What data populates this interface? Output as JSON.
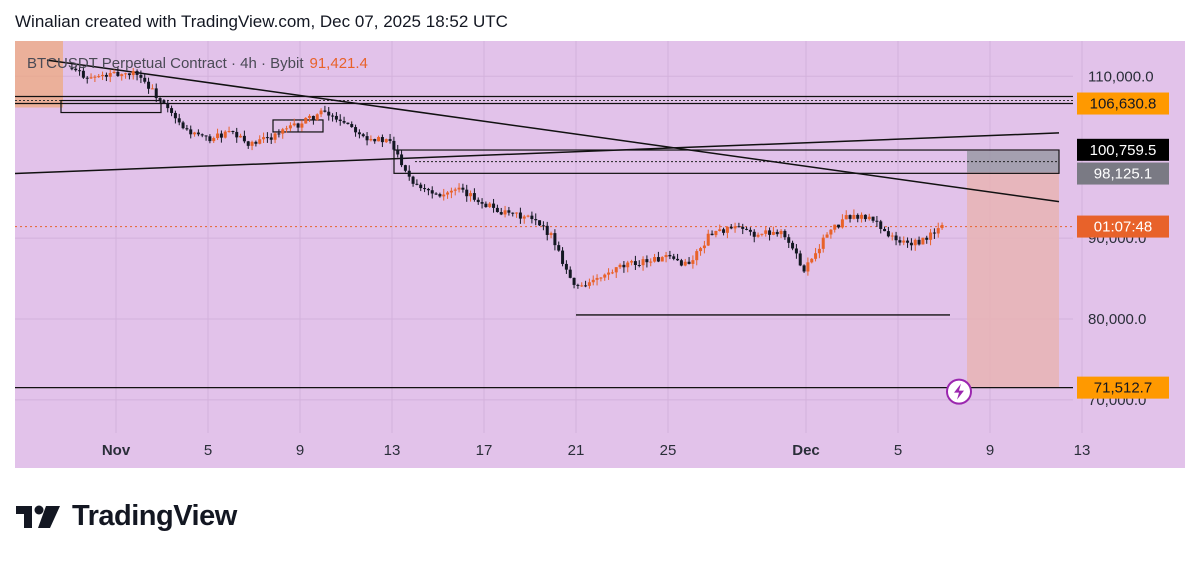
{
  "header": {
    "caption": "Winalian created with TradingView.com, Dec 07, 2025 18:52 UTC"
  },
  "symbol": {
    "name": "BTCUSDT Perpetual Contract · 4h · Bybit",
    "last_price": "91,421.4"
  },
  "colors": {
    "background": "#e2c2ea",
    "up_candle": "#e8622a",
    "down_candle": "#131722",
    "target_zone": "#e8b4b4",
    "stop_zone": "#9a9aa6",
    "label_orange": "#ff9900",
    "label_countdown": "#e8622a",
    "label_black": "#000000",
    "label_gray": "#7a7a84"
  },
  "price_labels": {
    "p110000": "110,000.0",
    "p106630": "106,630.8",
    "p100759": "100,759.5",
    "p98125": "98,125.1",
    "countdown": "01:07:48",
    "p90000": "90,000.0",
    "p80000": "80,000.0",
    "p71512": "71,512.7",
    "p70000": "70,000.0"
  },
  "chart_data": {
    "type": "candlestick",
    "timeframe": "4h",
    "x_ticks": [
      "Nov",
      "5",
      "9",
      "13",
      "17",
      "21",
      "25",
      "Dec",
      "5",
      "9",
      "13"
    ],
    "y_ticks": [
      110000,
      90000,
      80000,
      70000
    ],
    "ylim": [
      68500,
      113000
    ],
    "horizontal_levels": [
      106630.8,
      100759.5,
      98125.1,
      80500,
      71512.7
    ],
    "daily_path": [
      {
        "date": "2025-10-30",
        "close": 111000
      },
      {
        "date": "2025-10-31",
        "close": 109800
      },
      {
        "date": "2025-11-01",
        "close": 110200
      },
      {
        "date": "2025-11-02",
        "close": 110500
      },
      {
        "date": "2025-11-03",
        "close": 107000
      },
      {
        "date": "2025-11-04",
        "close": 103500
      },
      {
        "date": "2025-11-05",
        "close": 102200
      },
      {
        "date": "2025-11-06",
        "close": 103000
      },
      {
        "date": "2025-11-07",
        "close": 101500
      },
      {
        "date": "2025-11-08",
        "close": 102800
      },
      {
        "date": "2025-11-09",
        "close": 104000
      },
      {
        "date": "2025-11-10",
        "close": 105500
      },
      {
        "date": "2025-11-11",
        "close": 104500
      },
      {
        "date": "2025-11-12",
        "close": 102500
      },
      {
        "date": "2025-11-13",
        "close": 101800
      },
      {
        "date": "2025-11-14",
        "close": 97000
      },
      {
        "date": "2025-11-15",
        "close": 95500
      },
      {
        "date": "2025-11-16",
        "close": 95800
      },
      {
        "date": "2025-11-17",
        "close": 94500
      },
      {
        "date": "2025-11-18",
        "close": 93000
      },
      {
        "date": "2025-11-19",
        "close": 92500
      },
      {
        "date": "2025-11-20",
        "close": 90500
      },
      {
        "date": "2025-11-21",
        "close": 84000
      },
      {
        "date": "2025-11-22",
        "close": 84800
      },
      {
        "date": "2025-11-23",
        "close": 86300
      },
      {
        "date": "2025-11-24",
        "close": 87200
      },
      {
        "date": "2025-11-25",
        "close": 87500
      },
      {
        "date": "2025-11-26",
        "close": 86800
      },
      {
        "date": "2025-11-27",
        "close": 90800
      },
      {
        "date": "2025-11-28",
        "close": 91200
      },
      {
        "date": "2025-11-29",
        "close": 90400
      },
      {
        "date": "2025-11-30",
        "close": 91000
      },
      {
        "date": "2025-12-01",
        "close": 86200
      },
      {
        "date": "2025-12-02",
        "close": 90500
      },
      {
        "date": "2025-12-03",
        "close": 92800
      },
      {
        "date": "2025-12-04",
        "close": 92300
      },
      {
        "date": "2025-12-05",
        "close": 89600
      },
      {
        "date": "2025-12-06",
        "close": 89300
      },
      {
        "date": "2025-12-07",
        "close": 91421.4
      }
    ],
    "trendlines": [
      {
        "from": {
          "date": "2025-10-29",
          "price": 112000
        },
        "to": {
          "date": "2025-12-12",
          "price": 94500
        }
      },
      {
        "from": {
          "date": "2025-10-26",
          "price": 97800
        },
        "to": {
          "date": "2025-12-12",
          "price": 103000
        }
      }
    ],
    "position_box": {
      "from_date": "2025-12-08",
      "to_date": "2025-12-12",
      "stop": 100759.5,
      "entry": 98125.1,
      "target": 71512.7
    }
  }
}
